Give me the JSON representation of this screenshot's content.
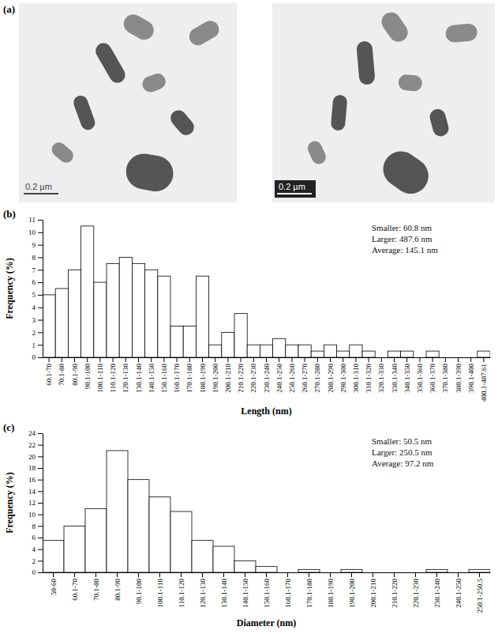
{
  "images": {
    "label": "(a)",
    "scale_bar_labels": [
      "0.2 µm",
      "0.2 µm"
    ]
  },
  "chart_data": [
    {
      "type": "bar",
      "panel_label": "(b)",
      "x_label": "Length (nm)",
      "y_label": "Frequency (%)",
      "categories": [
        "60.1-70",
        "70.1-80",
        "80.1-90",
        "90.1-100",
        "100.1-110",
        "110.1-120",
        "120.1-130",
        "130.1-140",
        "140.1-150",
        "150.1-160",
        "160.1-170",
        "170.1-180",
        "180.1-190",
        "190.1-200",
        "200.1-210",
        "210.1-220",
        "220.1-230",
        "230.1-240",
        "240.1-250",
        "250.1-260",
        "260.1-270",
        "270.1-280",
        "280.1-290",
        "290.1-300",
        "300.1-310",
        "310.1-320",
        "320.1-330",
        "330.1-340",
        "340.1-350",
        "350.1-360",
        "360.1-370",
        "370.1-380",
        "380.1-390",
        "390.1-400",
        "400.1-487.61"
      ],
      "values": [
        5,
        5.5,
        7,
        10.5,
        6,
        7.5,
        8,
        7.5,
        7,
        6.5,
        2.5,
        2.5,
        6.5,
        1,
        2,
        3.5,
        1,
        1,
        1.5,
        1,
        1,
        0.5,
        1,
        0.5,
        1,
        0.5,
        0,
        0.5,
        0.5,
        0,
        0.5,
        0,
        0,
        0,
        0.5
      ],
      "color": "#ffffff",
      "ylim": [
        0,
        11
      ],
      "yticks": [
        0,
        1,
        2,
        3,
        4,
        5,
        6,
        7,
        8,
        9,
        10,
        11
      ],
      "annotations": [
        "Smaller: 60.8 nm",
        "Larger: 487.6 nm",
        "Average: 145.1 nm"
      ]
    },
    {
      "type": "bar",
      "panel_label": "(c)",
      "x_label": "Diameter (nm)",
      "y_label": "Frequency (%)",
      "categories": [
        "50-60",
        "60.1-70",
        "70.1-80",
        "80.1-90",
        "90.1-100",
        "100.1-110",
        "110.1-120",
        "120.1-130",
        "130.1-140",
        "140.1-150",
        "150.1-160",
        "160.1-170",
        "170.1-180",
        "180.1-190",
        "190.1-200",
        "200.1-210",
        "210.1-220",
        "220.1-230",
        "230.1-240",
        "240.1-250",
        "250.1-250.5"
      ],
      "values": [
        5.5,
        8,
        11,
        21,
        16,
        13,
        10.5,
        5.5,
        4.5,
        2,
        1,
        0,
        0.5,
        0,
        0.5,
        0,
        0,
        0,
        0.5,
        0,
        0.5
      ],
      "color": "#ffffff",
      "ylim": [
        0,
        24
      ],
      "yticks": [
        0,
        2,
        4,
        6,
        8,
        10,
        12,
        14,
        16,
        18,
        20,
        22,
        24
      ],
      "annotations": [
        "Smaller: 50.5 nm",
        "Larger: 250.5 nm",
        "Average: 97.2 nm"
      ]
    }
  ]
}
